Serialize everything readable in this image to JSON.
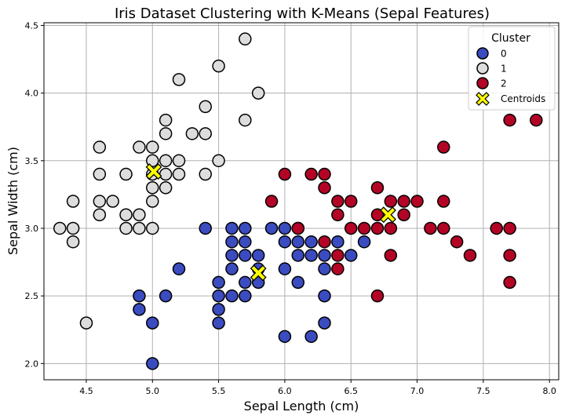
{
  "chart_data": {
    "type": "scatter",
    "title": "Iris Dataset Clustering with K-Means (Sepal Features)",
    "xlabel": "Sepal Length (cm)",
    "ylabel": "Sepal Width (cm)",
    "xlim": [
      4.18,
      8.07
    ],
    "ylim": [
      1.88,
      4.52
    ],
    "xticks": [
      "4.5",
      "5.0",
      "5.5",
      "6.0",
      "6.5",
      "7.0",
      "7.5",
      "8.0"
    ],
    "yticks": [
      "2.0",
      "2.5",
      "3.0",
      "3.5",
      "4.0",
      "4.5"
    ],
    "grid": true,
    "legend": {
      "title": "Cluster",
      "placement": "top-right",
      "entries": [
        "0",
        "1",
        "2",
        "Centroids"
      ]
    },
    "series": [
      {
        "name": "0",
        "color": "#3b4cc0",
        "points": [
          [
            4.9,
            2.5
          ],
          [
            4.9,
            2.4
          ],
          [
            5.0,
            2.3
          ],
          [
            5.0,
            2.0
          ],
          [
            5.1,
            2.5
          ],
          [
            5.2,
            2.7
          ],
          [
            5.4,
            3.0
          ],
          [
            5.5,
            2.6
          ],
          [
            5.5,
            2.5
          ],
          [
            5.5,
            2.4
          ],
          [
            5.5,
            2.3
          ],
          [
            5.6,
            3.0
          ],
          [
            5.6,
            2.9
          ],
          [
            5.6,
            2.8
          ],
          [
            5.6,
            2.7
          ],
          [
            5.6,
            2.5
          ],
          [
            5.7,
            3.0
          ],
          [
            5.7,
            2.9
          ],
          [
            5.7,
            2.8
          ],
          [
            5.7,
            2.6
          ],
          [
            5.7,
            2.5
          ],
          [
            5.8,
            2.8
          ],
          [
            5.8,
            2.7
          ],
          [
            5.8,
            2.6
          ],
          [
            5.9,
            3.0
          ],
          [
            6.0,
            3.0
          ],
          [
            6.0,
            2.9
          ],
          [
            6.0,
            2.7
          ],
          [
            6.0,
            2.2
          ],
          [
            6.1,
            3.0
          ],
          [
            6.1,
            2.9
          ],
          [
            6.1,
            2.8
          ],
          [
            6.1,
            2.6
          ],
          [
            6.2,
            2.9
          ],
          [
            6.2,
            2.8
          ],
          [
            6.2,
            2.2
          ],
          [
            6.3,
            2.8
          ],
          [
            6.3,
            2.7
          ],
          [
            6.3,
            2.5
          ],
          [
            6.3,
            2.3
          ],
          [
            6.4,
            2.9
          ],
          [
            6.5,
            2.8
          ],
          [
            6.6,
            2.9
          ]
        ]
      },
      {
        "name": "1",
        "color": "#dddddd",
        "points": [
          [
            4.3,
            3.0
          ],
          [
            4.4,
            3.2
          ],
          [
            4.4,
            3.0
          ],
          [
            4.4,
            2.9
          ],
          [
            4.5,
            2.3
          ],
          [
            4.6,
            3.6
          ],
          [
            4.6,
            3.4
          ],
          [
            4.6,
            3.2
          ],
          [
            4.6,
            3.1
          ],
          [
            4.7,
            3.2
          ],
          [
            4.8,
            3.4
          ],
          [
            4.8,
            3.1
          ],
          [
            4.8,
            3.0
          ],
          [
            4.9,
            3.6
          ],
          [
            4.9,
            3.1
          ],
          [
            4.9,
            3.0
          ],
          [
            5.0,
            3.6
          ],
          [
            5.0,
            3.5
          ],
          [
            5.0,
            3.4
          ],
          [
            5.0,
            3.3
          ],
          [
            5.0,
            3.2
          ],
          [
            5.0,
            3.0
          ],
          [
            5.1,
            3.8
          ],
          [
            5.1,
            3.7
          ],
          [
            5.1,
            3.5
          ],
          [
            5.1,
            3.4
          ],
          [
            5.1,
            3.3
          ],
          [
            5.2,
            4.1
          ],
          [
            5.2,
            3.5
          ],
          [
            5.2,
            3.4
          ],
          [
            5.3,
            3.7
          ],
          [
            5.4,
            3.9
          ],
          [
            5.4,
            3.7
          ],
          [
            5.4,
            3.4
          ],
          [
            5.5,
            4.2
          ],
          [
            5.5,
            3.5
          ],
          [
            5.7,
            4.4
          ],
          [
            5.7,
            3.8
          ],
          [
            5.8,
            4.0
          ]
        ]
      },
      {
        "name": "2",
        "color": "#b40426",
        "points": [
          [
            5.9,
            3.2
          ],
          [
            6.0,
            3.4
          ],
          [
            6.1,
            3.0
          ],
          [
            6.2,
            3.4
          ],
          [
            6.3,
            3.4
          ],
          [
            6.3,
            3.3
          ],
          [
            6.3,
            2.9
          ],
          [
            6.4,
            3.2
          ],
          [
            6.4,
            3.1
          ],
          [
            6.4,
            2.8
          ],
          [
            6.4,
            2.7
          ],
          [
            6.5,
            3.2
          ],
          [
            6.5,
            3.0
          ],
          [
            6.6,
            3.0
          ],
          [
            6.7,
            3.3
          ],
          [
            6.7,
            3.1
          ],
          [
            6.7,
            3.0
          ],
          [
            6.7,
            2.5
          ],
          [
            6.8,
            3.2
          ],
          [
            6.8,
            3.0
          ],
          [
            6.8,
            2.8
          ],
          [
            6.9,
            3.2
          ],
          [
            6.9,
            3.1
          ],
          [
            7.0,
            3.2
          ],
          [
            7.1,
            3.0
          ],
          [
            7.2,
            3.6
          ],
          [
            7.2,
            3.2
          ],
          [
            7.2,
            3.0
          ],
          [
            7.3,
            2.9
          ],
          [
            7.4,
            2.8
          ],
          [
            7.6,
            3.0
          ],
          [
            7.7,
            3.8
          ],
          [
            7.7,
            3.0
          ],
          [
            7.7,
            2.8
          ],
          [
            7.7,
            2.6
          ],
          [
            7.9,
            3.8
          ]
        ]
      }
    ],
    "centroids": {
      "name": "Centroids",
      "color": "#ffff00",
      "points": [
        [
          5.01,
          3.42
        ],
        [
          5.8,
          2.67
        ],
        [
          6.78,
          3.1
        ]
      ]
    }
  }
}
